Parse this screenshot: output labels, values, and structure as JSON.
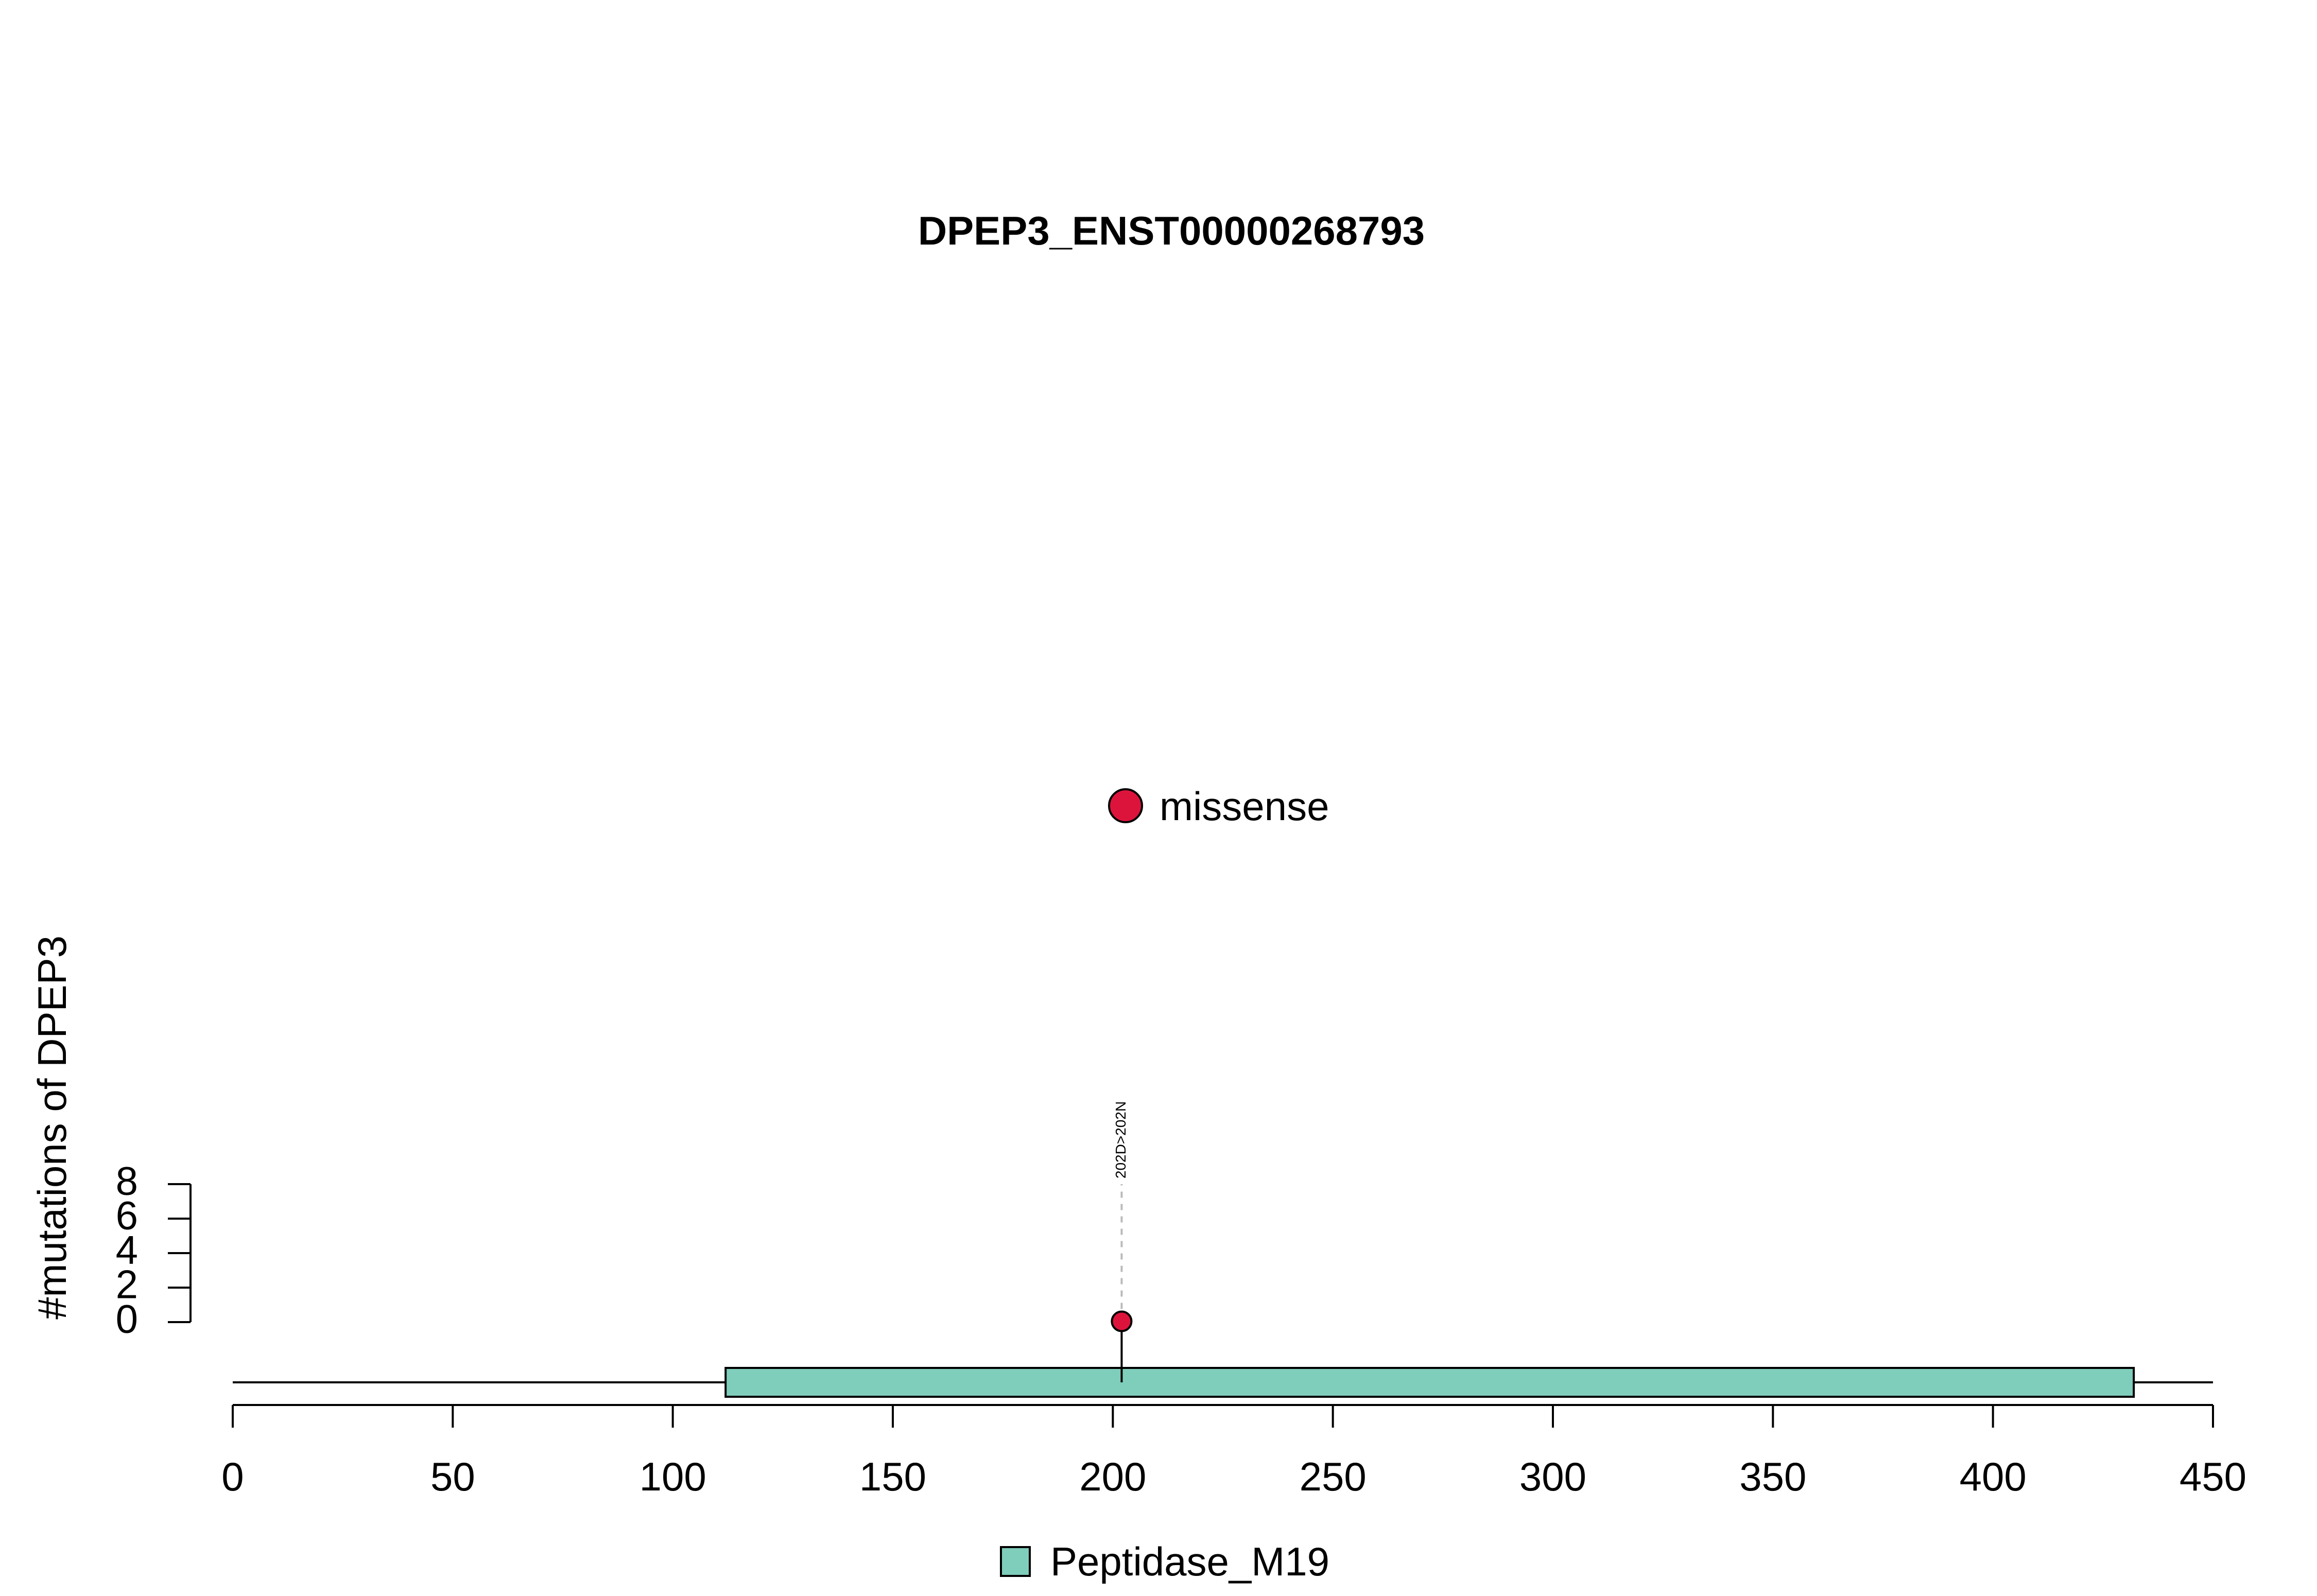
{
  "chart_data": {
    "type": "lollipop",
    "title": "DPEP3_ENST00000268793",
    "ylabel": "#mutations of DPEP3",
    "xlabel": "",
    "x_ticks": [
      0,
      50,
      100,
      150,
      200,
      250,
      300,
      350,
      400,
      450
    ],
    "xlim": [
      0,
      450
    ],
    "y_ticks": [
      0,
      2,
      4,
      6,
      8
    ],
    "ylim": [
      0,
      8
    ],
    "protein_length": 450,
    "domains": [
      {
        "name": "Peptidase_M19",
        "start": 112,
        "end": 432,
        "color": "#7FCDBB"
      }
    ],
    "mutations": [
      {
        "position": 202,
        "count": 1,
        "type": "missense",
        "label": "202D>202N",
        "color": "#DC143C"
      }
    ],
    "legend_top": [
      {
        "label": "missense",
        "color": "#DC143C"
      }
    ],
    "legend_bottom": [
      {
        "label": "Peptidase_M19",
        "color": "#7FCDBB"
      }
    ]
  }
}
